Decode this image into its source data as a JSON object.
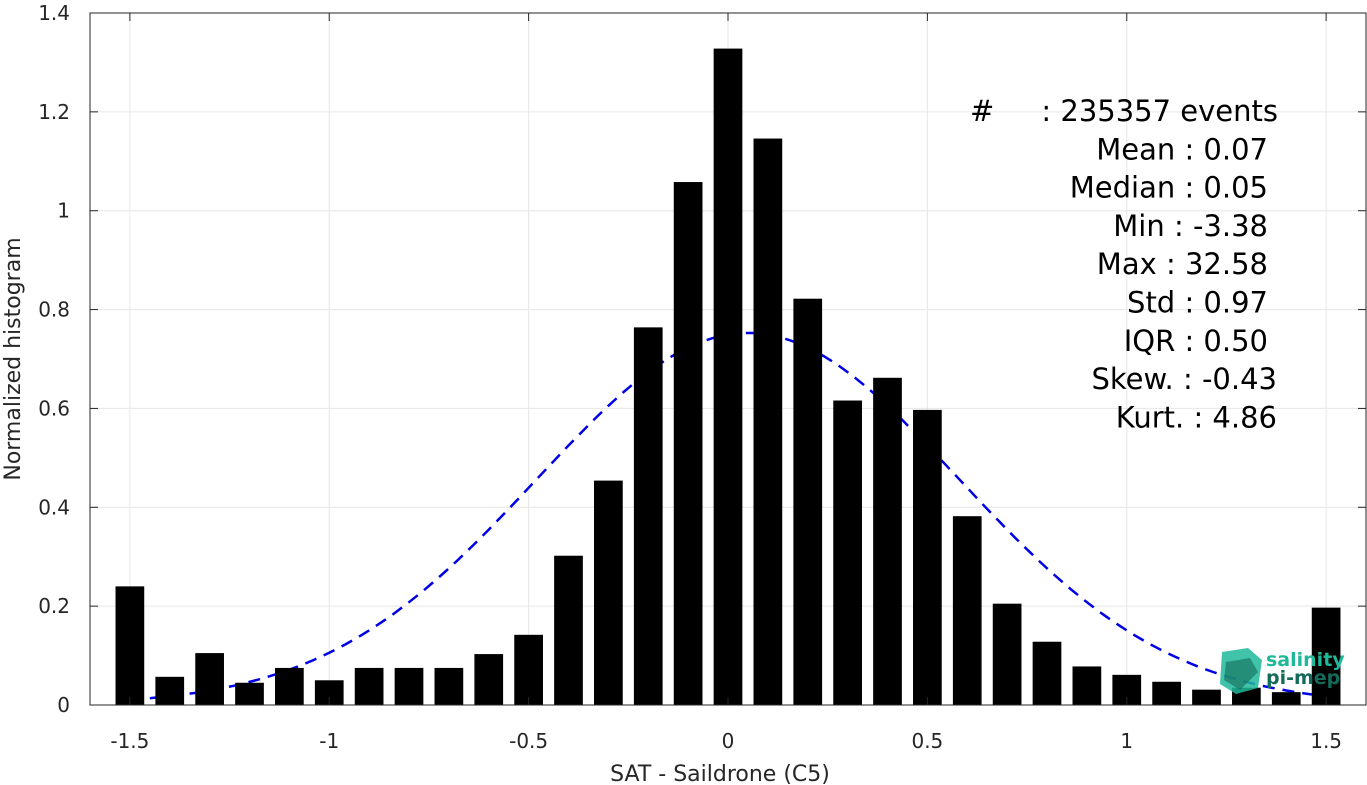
{
  "chart_data": {
    "type": "bar",
    "xlabel": "SAT - Saildrone (C5)",
    "ylabel": "Normalized histogram",
    "xlim": [
      -1.6,
      1.6
    ],
    "ylim": [
      0,
      1.4
    ],
    "grid": true,
    "x_ticks": [
      -1.5,
      -1,
      -0.5,
      0,
      0.5,
      1,
      1.5
    ],
    "x_tick_labels": [
      "-1.5",
      "-1",
      "-0.5",
      "0",
      "0.5",
      "1",
      "1.5"
    ],
    "y_ticks": [
      0,
      0.2,
      0.4,
      0.6,
      0.8,
      1,
      1.2,
      1.4
    ],
    "y_tick_labels": [
      "0",
      "0.2",
      "0.4",
      "0.6",
      "0.8",
      "1",
      "1.2",
      "1.4"
    ],
    "bar_color": "#000000",
    "bins": {
      "x": [
        -1.5,
        -1.4,
        -1.3,
        -1.2,
        -1.1,
        -1.0,
        -0.9,
        -0.8,
        -0.7,
        -0.6,
        -0.5,
        -0.4,
        -0.3,
        -0.2,
        -0.1,
        0.0,
        0.1,
        0.2,
        0.3,
        0.4,
        0.5,
        0.6,
        0.7,
        0.8,
        0.9,
        1.0,
        1.1,
        1.2,
        1.3,
        1.4,
        1.5
      ],
      "values": [
        0.24,
        0.057,
        0.105,
        0.045,
        0.075,
        0.05,
        0.075,
        0.075,
        0.075,
        0.103,
        0.142,
        0.302,
        0.454,
        0.764,
        1.058,
        1.328,
        1.146,
        0.822,
        0.616,
        0.662,
        0.597,
        0.382,
        0.205,
        0.128,
        0.078,
        0.061,
        0.047,
        0.031,
        0.035,
        0.026,
        0.197
      ]
    },
    "fit": {
      "type": "normal",
      "mean": 0.05,
      "std": 0.53,
      "color": "#0000e6",
      "style": "dashed"
    },
    "stats": [
      {
        "label": "#",
        "value": ": 235357 events"
      },
      {
        "label": "Mean",
        "value": ": 0.07"
      },
      {
        "label": "Median",
        "value": ": 0.05"
      },
      {
        "label": "Min",
        "value": ": -3.38"
      },
      {
        "label": "Max",
        "value": ": 32.58"
      },
      {
        "label": "Std",
        "value": ": 0.97"
      },
      {
        "label": "IQR",
        "value": ": 0.50"
      },
      {
        "label": "Skew.",
        "value": ": -0.43"
      },
      {
        "label": "Kurt.",
        "value": ": 4.86"
      }
    ]
  },
  "logo": {
    "line1": "salinity",
    "line2": "pi-mep",
    "color1": "#1fb89a",
    "color2": "#146b5a"
  }
}
